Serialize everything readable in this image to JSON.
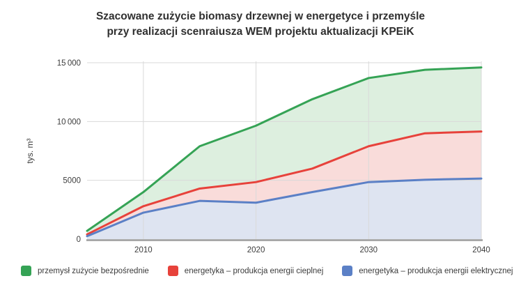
{
  "title": {
    "line1": "Szacowane zużycie biomasy drzewnej w energetyce i przemyśle",
    "line2": "przy realizacji scenraiusza WEM projektu aktualizacji KPEiK"
  },
  "legend": {
    "items": [
      {
        "label": "przemysł zużycie bezpośrednie"
      },
      {
        "label": "energetyka – produkcja energii cieplnej"
      },
      {
        "label": "energetyka – produkcja energii elektrycznej"
      }
    ]
  },
  "colors": {
    "grid": "#d9d9d9",
    "axis": "#9c9c9c",
    "tick_text": "#3c3c3c"
  },
  "chart_data": {
    "type": "area",
    "title": "Szacowane zużycie biomasy drzewnej w energetyce i przemyśle przy realizacji scenraiusza WEM projektu aktualizacji KPEiK",
    "x": [
      2005,
      2010,
      2015,
      2020,
      2025,
      2030,
      2035,
      2040
    ],
    "series": [
      {
        "name": "przemysł zużycie bezpośrednie",
        "color": "#35a355",
        "fill": "#ddefdf",
        "values": [
          700,
          4000,
          7900,
          9650,
          11900,
          13700,
          14400,
          14600
        ]
      },
      {
        "name": "energetyka – produkcja energii cieplnej",
        "color": "#e7423b",
        "fill": "#f9dcda",
        "values": [
          400,
          2800,
          4300,
          4850,
          6000,
          7900,
          9000,
          9150
        ]
      },
      {
        "name": "energetyka – produkcja energii elektrycznej",
        "color": "#5b80c6",
        "fill": "#dee4f1",
        "values": [
          250,
          2250,
          3250,
          3100,
          4000,
          4850,
          5050,
          5150
        ]
      }
    ],
    "xlabel": "",
    "ylabel": "tys. m³",
    "xlim": [
      2005,
      2040
    ],
    "ylim": [
      0,
      15000
    ],
    "x_ticks": [
      2010,
      2020,
      2030,
      2040
    ],
    "x_tick_labels": [
      "2010",
      "2020",
      "2030",
      "2040"
    ],
    "y_ticks": [
      0,
      5000,
      10000,
      15000
    ],
    "y_tick_labels": [
      "0",
      "5000",
      "10 000",
      "15 000"
    ],
    "grid": true,
    "legend_position": "bottom"
  }
}
